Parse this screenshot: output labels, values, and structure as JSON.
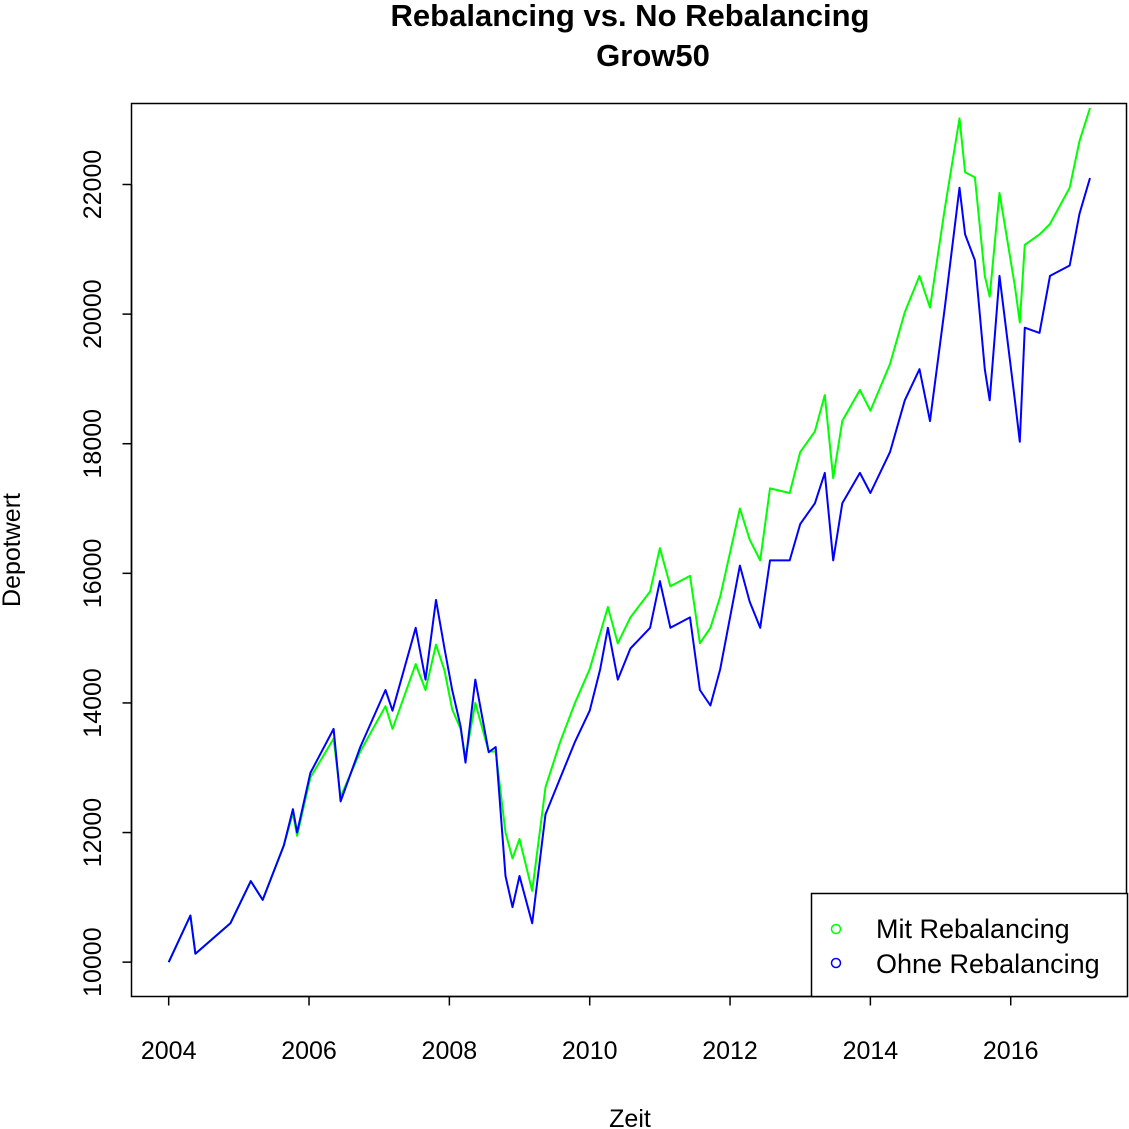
{
  "chart_data": {
    "type": "line",
    "title": "Rebalancing vs. No Rebalancing",
    "subtitle": "Grow50",
    "xlabel": "Zeit",
    "ylabel": "Depotwert",
    "xlim": [
      2003.47,
      2017.65
    ],
    "ylim": [
      9470,
      23250
    ],
    "xticks": [
      2004,
      2006,
      2008,
      2010,
      2012,
      2014,
      2016
    ],
    "yticks": [
      10000,
      12000,
      14000,
      16000,
      18000,
      20000,
      22000
    ],
    "grid": false,
    "legend_position": "bottom-right",
    "series": [
      {
        "name": "Mit Rebalancing",
        "color": "#00ff00",
        "x": [
          2004.0,
          2004.31,
          2004.38,
          2004.88,
          2005.17,
          2005.34,
          2005.64,
          2005.77,
          2005.83,
          2006.02,
          2006.35,
          2006.45,
          2006.73,
          2007.09,
          2007.19,
          2007.52,
          2007.66,
          2007.81,
          2007.93,
          2008.04,
          2008.16,
          2008.23,
          2008.37,
          2008.56,
          2008.66,
          2008.8,
          2008.9,
          2009.0,
          2009.18,
          2009.37,
          2009.58,
          2009.79,
          2010.0,
          2010.26,
          2010.4,
          2010.58,
          2010.86,
          2011.0,
          2011.15,
          2011.43,
          2011.57,
          2011.72,
          2011.86,
          2012.14,
          2012.28,
          2012.43,
          2012.57,
          2012.85,
          2013.0,
          2013.21,
          2013.35,
          2013.47,
          2013.6,
          2013.85,
          2014.0,
          2014.28,
          2014.49,
          2014.7,
          2014.85,
          2015.06,
          2015.27,
          2015.35,
          2015.49,
          2015.63,
          2015.7,
          2015.84,
          2016.06,
          2016.13,
          2016.2,
          2016.41,
          2016.56,
          2016.84,
          2016.98,
          2017.13
        ],
        "y": [
          10000,
          10720,
          10130,
          10600,
          11250,
          10960,
          11800,
          12300,
          11950,
          12850,
          13450,
          12550,
          13250,
          13950,
          13600,
          14600,
          14200,
          14900,
          14500,
          13900,
          13600,
          13150,
          14000,
          13250,
          13250,
          12000,
          11600,
          11900,
          11100,
          12700,
          13400,
          14000,
          14520,
          15480,
          14920,
          15320,
          15720,
          16390,
          15800,
          15960,
          14920,
          15160,
          15640,
          17000,
          16520,
          16200,
          17310,
          17240,
          17870,
          18190,
          18750,
          17470,
          18350,
          18830,
          18510,
          19230,
          20030,
          20590,
          20100,
          21630,
          23020,
          22190,
          22110,
          20590,
          20270,
          21870,
          20430,
          19870,
          21070,
          21230,
          21390,
          21950,
          22670,
          23180
        ]
      },
      {
        "name": "Ohne Rebalancing",
        "color": "#0000ff",
        "x": [
          2004.0,
          2004.31,
          2004.38,
          2004.88,
          2005.17,
          2005.34,
          2005.64,
          2005.77,
          2005.83,
          2006.02,
          2006.35,
          2006.45,
          2006.73,
          2007.09,
          2007.19,
          2007.52,
          2007.66,
          2007.81,
          2007.93,
          2008.04,
          2008.16,
          2008.23,
          2008.37,
          2008.56,
          2008.66,
          2008.8,
          2008.9,
          2009.0,
          2009.18,
          2009.37,
          2009.58,
          2009.79,
          2010.0,
          2010.15,
          2010.26,
          2010.4,
          2010.58,
          2010.86,
          2011.0,
          2011.15,
          2011.43,
          2011.57,
          2011.72,
          2011.86,
          2012.14,
          2012.28,
          2012.43,
          2012.57,
          2012.85,
          2013.0,
          2013.21,
          2013.35,
          2013.47,
          2013.6,
          2013.85,
          2014.0,
          2014.28,
          2014.49,
          2014.7,
          2014.85,
          2015.06,
          2015.27,
          2015.35,
          2015.49,
          2015.63,
          2015.7,
          2015.84,
          2016.06,
          2016.13,
          2016.2,
          2016.41,
          2016.56,
          2016.84,
          2016.98,
          2017.13
        ],
        "y": [
          10000,
          10720,
          10130,
          10600,
          11250,
          10960,
          11800,
          12360,
          12000,
          12920,
          13600,
          12480,
          13320,
          14200,
          13880,
          15160,
          14360,
          15590,
          14840,
          14200,
          13640,
          13080,
          14360,
          13240,
          13320,
          11330,
          10850,
          11330,
          10600,
          12280,
          12840,
          13400,
          13880,
          14520,
          15160,
          14360,
          14840,
          15160,
          15880,
          15160,
          15320,
          14200,
          13960,
          14520,
          16120,
          15560,
          15160,
          16200,
          16200,
          16760,
          17080,
          17550,
          16200,
          17080,
          17550,
          17240,
          17870,
          18670,
          19150,
          18350,
          20100,
          21950,
          21230,
          20830,
          19150,
          18670,
          20590,
          18670,
          18030,
          19790,
          19710,
          20590,
          20750,
          21550,
          22100
        ]
      }
    ]
  }
}
